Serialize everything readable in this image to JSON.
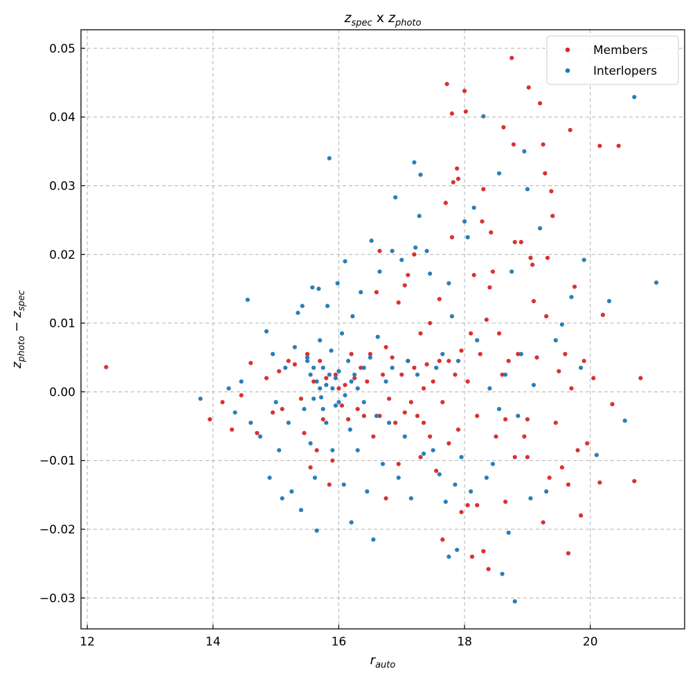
{
  "chart_data": {
    "type": "scatter",
    "title": {
      "base1": "z",
      "sub1": "spec",
      "mid": " x ",
      "base2": "z",
      "sub2": "photo"
    },
    "xlabel": {
      "base": "r",
      "sub": "auto"
    },
    "ylabel": {
      "base1": "z",
      "sub1": "photo",
      "mid": " − ",
      "base2": "z",
      "sub2": "spec"
    },
    "xlim": [
      11.9,
      21.5
    ],
    "ylim": [
      -0.0345,
      0.0527
    ],
    "xticks": [
      12,
      14,
      16,
      18,
      20
    ],
    "xtick_labels": [
      "12",
      "14",
      "16",
      "18",
      "20"
    ],
    "yticks": [
      -0.03,
      -0.02,
      -0.01,
      0.0,
      0.01,
      0.02,
      0.03,
      0.04,
      0.05
    ],
    "ytick_labels": [
      "−0.03",
      "−0.02",
      "−0.01",
      "0.00",
      "0.01",
      "0.02",
      "0.03",
      "0.04",
      "0.05"
    ],
    "grid": true,
    "legend_position": "top-right",
    "series": [
      {
        "name": "Members",
        "color": "#d62728",
        "points": [
          [
            12.3,
            0.0036
          ],
          [
            13.95,
            -0.004
          ],
          [
            14.15,
            -0.0015
          ],
          [
            14.3,
            -0.0055
          ],
          [
            14.45,
            -0.0005
          ],
          [
            14.6,
            0.0042
          ],
          [
            14.7,
            -0.006
          ],
          [
            14.85,
            0.002
          ],
          [
            14.95,
            -0.003
          ],
          [
            15.05,
            0.003
          ],
          [
            15.1,
            -0.0025
          ],
          [
            15.2,
            0.0045
          ],
          [
            15.3,
            0.004
          ],
          [
            15.4,
            -0.001
          ],
          [
            15.45,
            -0.006
          ],
          [
            15.5,
            0.0055
          ],
          [
            15.55,
            -0.011
          ],
          [
            15.6,
            0.0015
          ],
          [
            15.65,
            -0.0085
          ],
          [
            15.7,
            0.0045
          ],
          [
            15.75,
            -0.004
          ],
          [
            15.8,
            0.002
          ],
          [
            15.85,
            -0.0135
          ],
          [
            15.9,
            -0.01
          ],
          [
            15.95,
            0.0025
          ],
          [
            16.0,
            0.0005
          ],
          [
            16.05,
            -0.002
          ],
          [
            16.1,
            0.001
          ],
          [
            16.15,
            -0.004
          ],
          [
            16.2,
            0.0055
          ],
          [
            16.25,
            0.002
          ],
          [
            16.3,
            -0.0025
          ],
          [
            16.35,
            0.0035
          ],
          [
            16.4,
            -0.0035
          ],
          [
            16.45,
            0.0015
          ],
          [
            16.5,
            0.0055
          ],
          [
            16.55,
            -0.0065
          ],
          [
            16.6,
            0.0145
          ],
          [
            16.65,
            -0.0035
          ],
          [
            16.65,
            0.0205
          ],
          [
            16.7,
            0.0025
          ],
          [
            16.75,
            0.0065
          ],
          [
            16.75,
            -0.0155
          ],
          [
            16.8,
            -0.001
          ],
          [
            16.85,
            0.005
          ],
          [
            16.9,
            -0.0045
          ],
          [
            16.95,
            0.013
          ],
          [
            17.0,
            0.0025
          ],
          [
            17.05,
            -0.003
          ],
          [
            17.05,
            0.0155
          ],
          [
            17.1,
            0.0045
          ],
          [
            17.1,
            0.017
          ],
          [
            17.15,
            -0.0015
          ],
          [
            17.2,
            0.0035
          ],
          [
            17.2,
            0.02
          ],
          [
            17.25,
            -0.0035
          ],
          [
            17.3,
            0.0085
          ],
          [
            17.35,
            0.0005
          ],
          [
            17.35,
            -0.0045
          ],
          [
            17.4,
            0.004
          ],
          [
            17.45,
            -0.0065
          ],
          [
            17.45,
            0.01
          ],
          [
            17.5,
            0.0015
          ],
          [
            17.55,
            -0.0115
          ],
          [
            17.6,
            0.0045
          ],
          [
            17.6,
            0.0135
          ],
          [
            17.65,
            -0.0015
          ],
          [
            17.65,
            -0.0215
          ],
          [
            17.7,
            0.0275
          ],
          [
            17.72,
            0.0448
          ],
          [
            17.75,
            0.0045
          ],
          [
            17.75,
            -0.0075
          ],
          [
            17.8,
            0.0405
          ],
          [
            17.8,
            0.0225
          ],
          [
            17.82,
            0.0305
          ],
          [
            17.85,
            0.0025
          ],
          [
            17.88,
            0.0325
          ],
          [
            17.9,
            0.031
          ],
          [
            17.9,
            -0.0055
          ],
          [
            17.95,
            0.006
          ],
          [
            17.95,
            -0.0175
          ],
          [
            18.0,
            0.0438
          ],
          [
            18.02,
            0.0408
          ],
          [
            18.05,
            -0.0165
          ],
          [
            18.05,
            0.0015
          ],
          [
            18.1,
            0.0085
          ],
          [
            18.12,
            -0.024
          ],
          [
            18.15,
            0.017
          ],
          [
            18.2,
            -0.0035
          ],
          [
            18.25,
            0.0055
          ],
          [
            18.28,
            0.0248
          ],
          [
            18.3,
            0.0295
          ],
          [
            18.3,
            -0.0232
          ],
          [
            18.35,
            0.0105
          ],
          [
            18.38,
            -0.0258
          ],
          [
            18.4,
            0.0152
          ],
          [
            18.42,
            0.0232
          ],
          [
            18.45,
            0.0175
          ],
          [
            18.5,
            -0.0065
          ],
          [
            18.55,
            0.0085
          ],
          [
            18.6,
            0.0025
          ],
          [
            18.62,
            0.0385
          ],
          [
            18.65,
            -0.004
          ],
          [
            18.7,
            0.0045
          ],
          [
            18.75,
            0.0486
          ],
          [
            18.78,
            0.036
          ],
          [
            18.8,
            0.0218
          ],
          [
            18.8,
            -0.0095
          ],
          [
            18.85,
            0.0055
          ],
          [
            18.9,
            0.0218
          ],
          [
            18.95,
            -0.0065
          ],
          [
            19.0,
            -0.004
          ],
          [
            19.02,
            0.0443
          ],
          [
            19.05,
            0.0195
          ],
          [
            19.08,
            0.0185
          ],
          [
            19.1,
            0.0132
          ],
          [
            19.15,
            0.005
          ],
          [
            19.2,
            0.042
          ],
          [
            19.25,
            0.036
          ],
          [
            19.28,
            0.0318
          ],
          [
            19.3,
            0.011
          ],
          [
            19.32,
            0.0195
          ],
          [
            19.35,
            -0.0125
          ],
          [
            19.38,
            0.0292
          ],
          [
            19.4,
            0.0256
          ],
          [
            19.45,
            -0.0045
          ],
          [
            19.5,
            0.003
          ],
          [
            19.55,
            -0.011
          ],
          [
            19.6,
            0.0055
          ],
          [
            19.65,
            -0.0135
          ],
          [
            19.68,
            0.0381
          ],
          [
            19.7,
            0.0005
          ],
          [
            19.75,
            0.0153
          ],
          [
            19.8,
            -0.0085
          ],
          [
            19.85,
            -0.018
          ],
          [
            19.9,
            0.0045
          ],
          [
            19.95,
            -0.0075
          ],
          [
            20.05,
            0.002
          ],
          [
            20.15,
            0.0358
          ],
          [
            20.2,
            0.0112
          ],
          [
            20.35,
            -0.0018
          ],
          [
            20.45,
            0.0358
          ],
          [
            20.7,
            -0.013
          ],
          [
            20.8,
            0.002
          ],
          [
            18.65,
            -0.016
          ],
          [
            19.0,
            -0.0095
          ],
          [
            19.25,
            -0.019
          ],
          [
            19.65,
            -0.0235
          ],
          [
            18.2,
            -0.0165
          ],
          [
            17.3,
            -0.0095
          ],
          [
            16.95,
            -0.0105
          ],
          [
            20.15,
            -0.0132
          ]
        ]
      },
      {
        "name": "Interlopers",
        "color": "#1f77b4",
        "points": [
          [
            13.8,
            -0.001
          ],
          [
            14.25,
            0.0005
          ],
          [
            14.35,
            -0.003
          ],
          [
            14.45,
            0.0015
          ],
          [
            14.55,
            0.0134
          ],
          [
            14.6,
            -0.0045
          ],
          [
            14.75,
            -0.0065
          ],
          [
            14.85,
            0.0088
          ],
          [
            14.9,
            -0.0125
          ],
          [
            14.95,
            0.0055
          ],
          [
            15.0,
            -0.0015
          ],
          [
            15.05,
            -0.0085
          ],
          [
            15.1,
            -0.0155
          ],
          [
            15.15,
            0.0035
          ],
          [
            15.2,
            -0.0045
          ],
          [
            15.25,
            -0.0145
          ],
          [
            15.3,
            0.0065
          ],
          [
            15.35,
            0.0115
          ],
          [
            15.4,
            -0.0172
          ],
          [
            15.42,
            0.0125
          ],
          [
            15.45,
            -0.0025
          ],
          [
            15.5,
            0.0045
          ],
          [
            15.55,
            -0.0075
          ],
          [
            15.58,
            0.0152
          ],
          [
            15.6,
            0.0035
          ],
          [
            15.62,
            -0.0125
          ],
          [
            15.65,
            -0.0202
          ],
          [
            15.68,
            0.015
          ],
          [
            15.7,
            0.0075
          ],
          [
            15.72,
            -0.0008
          ],
          [
            15.75,
            0.0035
          ],
          [
            15.8,
            -0.0045
          ],
          [
            15.82,
            0.0125
          ],
          [
            15.85,
            0.034
          ],
          [
            15.88,
            0.006
          ],
          [
            15.9,
            -0.0085
          ],
          [
            15.95,
            0.002
          ],
          [
            15.98,
            0.0158
          ],
          [
            16.0,
            -0.0015
          ],
          [
            16.05,
            0.0085
          ],
          [
            16.08,
            -0.0135
          ],
          [
            16.1,
            0.019
          ],
          [
            16.15,
            0.0045
          ],
          [
            16.18,
            -0.0055
          ],
          [
            16.2,
            -0.019
          ],
          [
            16.22,
            0.011
          ],
          [
            16.25,
            0.0025
          ],
          [
            16.3,
            -0.0085
          ],
          [
            16.35,
            0.0145
          ],
          [
            16.4,
            0.0035
          ],
          [
            16.45,
            -0.0145
          ],
          [
            16.5,
            0.005
          ],
          [
            16.52,
            0.022
          ],
          [
            16.55,
            -0.0215
          ],
          [
            16.6,
            -0.0035
          ],
          [
            16.62,
            0.008
          ],
          [
            16.65,
            0.0175
          ],
          [
            16.7,
            -0.0105
          ],
          [
            16.75,
            0.0015
          ],
          [
            16.8,
            -0.0045
          ],
          [
            16.85,
            0.0035
          ],
          [
            16.9,
            0.0283
          ],
          [
            16.95,
            -0.0125
          ],
          [
            17.0,
            0.0192
          ],
          [
            17.05,
            -0.0065
          ],
          [
            17.1,
            0.0045
          ],
          [
            17.15,
            -0.0155
          ],
          [
            17.2,
            0.0334
          ],
          [
            17.22,
            0.021
          ],
          [
            17.25,
            0.0025
          ],
          [
            17.28,
            0.0256
          ],
          [
            17.3,
            0.0316
          ],
          [
            17.35,
            -0.009
          ],
          [
            17.4,
            0.0205
          ],
          [
            17.45,
            0.0172
          ],
          [
            17.5,
            -0.0085
          ],
          [
            17.55,
            0.0035
          ],
          [
            17.6,
            -0.012
          ],
          [
            17.65,
            0.0055
          ],
          [
            17.7,
            -0.016
          ],
          [
            17.75,
            -0.024
          ],
          [
            17.8,
            0.011
          ],
          [
            17.85,
            -0.0135
          ],
          [
            17.88,
            -0.023
          ],
          [
            17.9,
            0.0045
          ],
          [
            17.95,
            -0.0095
          ],
          [
            18.0,
            0.0248
          ],
          [
            18.05,
            0.0225
          ],
          [
            18.1,
            -0.0145
          ],
          [
            18.15,
            0.0268
          ],
          [
            18.2,
            0.0075
          ],
          [
            18.3,
            0.0401
          ],
          [
            18.35,
            -0.0125
          ],
          [
            18.4,
            0.0005
          ],
          [
            18.45,
            -0.0105
          ],
          [
            18.55,
            -0.0025
          ],
          [
            18.6,
            -0.0265
          ],
          [
            18.65,
            0.0025
          ],
          [
            18.7,
            -0.0205
          ],
          [
            18.75,
            0.0175
          ],
          [
            18.8,
            -0.0305
          ],
          [
            18.85,
            -0.0035
          ],
          [
            18.9,
            0.0055
          ],
          [
            18.95,
            0.035
          ],
          [
            19.0,
            0.0295
          ],
          [
            19.05,
            -0.0155
          ],
          [
            19.1,
            0.001
          ],
          [
            19.2,
            0.0238
          ],
          [
            19.3,
            -0.0145
          ],
          [
            19.45,
            0.0075
          ],
          [
            19.55,
            0.0098
          ],
          [
            19.7,
            0.0138
          ],
          [
            19.85,
            0.0035
          ],
          [
            19.9,
            0.0192
          ],
          [
            20.1,
            -0.0092
          ],
          [
            20.3,
            0.0132
          ],
          [
            20.55,
            -0.0042
          ],
          [
            20.7,
            0.0429
          ],
          [
            21.05,
            0.0159
          ],
          [
            16.85,
            0.0205
          ],
          [
            17.75,
            0.0158
          ],
          [
            18.55,
            0.0318
          ],
          [
            15.5,
            0.005
          ],
          [
            15.6,
            -0.001
          ],
          [
            15.7,
            0.0005
          ],
          [
            15.8,
            0.001
          ],
          [
            15.9,
            0.0005
          ],
          [
            16.0,
            0.003
          ],
          [
            16.1,
            -0.0005
          ],
          [
            16.2,
            0.0015
          ],
          [
            16.3,
            0.0005
          ],
          [
            16.4,
            -0.0015
          ],
          [
            15.55,
            0.0025
          ],
          [
            15.65,
            0.0015
          ],
          [
            15.75,
            -0.0025
          ],
          [
            15.85,
            0.0025
          ],
          [
            15.95,
            -0.002
          ]
        ]
      }
    ]
  }
}
